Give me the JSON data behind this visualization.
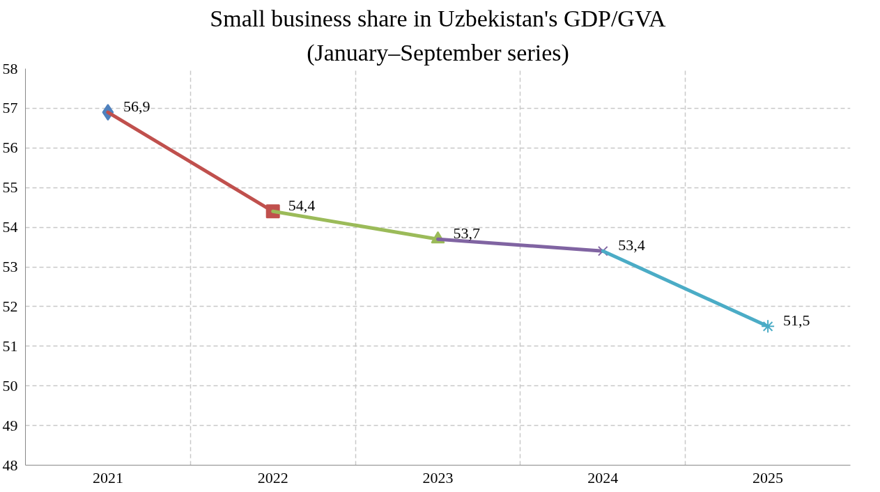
{
  "chart_data": {
    "type": "line",
    "title": "Small business share in Uzbekistan's GDP/GVA",
    "subtitle": "(January–September series)",
    "categories": [
      "2021",
      "2022",
      "2023",
      "2024",
      "2025"
    ],
    "series": [
      {
        "color": "#4f81bd",
        "values": [
          56.9,
          null,
          null,
          null,
          null
        ],
        "marker": [
          "diamond",
          "none",
          "none",
          "none",
          "none"
        ],
        "value_labels": [
          "56,9",
          null,
          null,
          null,
          null
        ]
      },
      {
        "color": "#c0504d",
        "values": [
          56.9,
          54.4,
          null,
          null,
          null
        ],
        "marker": [
          "none",
          "square",
          "none",
          "none",
          "none"
        ],
        "value_labels": [
          null,
          "54,4",
          null,
          null,
          null
        ]
      },
      {
        "color": "#9bbb59",
        "values": [
          null,
          54.4,
          53.7,
          null,
          null
        ],
        "marker": [
          "none",
          "none",
          "triangle",
          "none",
          "none"
        ],
        "value_labels": [
          null,
          null,
          "53,7",
          null,
          null
        ]
      },
      {
        "color": "#8064a2",
        "values": [
          null,
          null,
          53.7,
          53.4,
          null
        ],
        "marker": [
          "none",
          "none",
          "none",
          "cross",
          "none"
        ],
        "value_labels": [
          null,
          null,
          null,
          "53,4",
          null
        ]
      },
      {
        "color": "#4bacc6",
        "values": [
          null,
          null,
          null,
          53.4,
          51.5
        ],
        "marker": [
          "none",
          "none",
          "none",
          "none",
          "star"
        ],
        "value_labels": [
          null,
          null,
          null,
          null,
          "51,5"
        ]
      }
    ],
    "ylim": [
      48,
      58
    ],
    "yticks": [
      48,
      49,
      50,
      51,
      52,
      53,
      54,
      55,
      56,
      57,
      58
    ],
    "grid": true,
    "line_style": "solid"
  }
}
